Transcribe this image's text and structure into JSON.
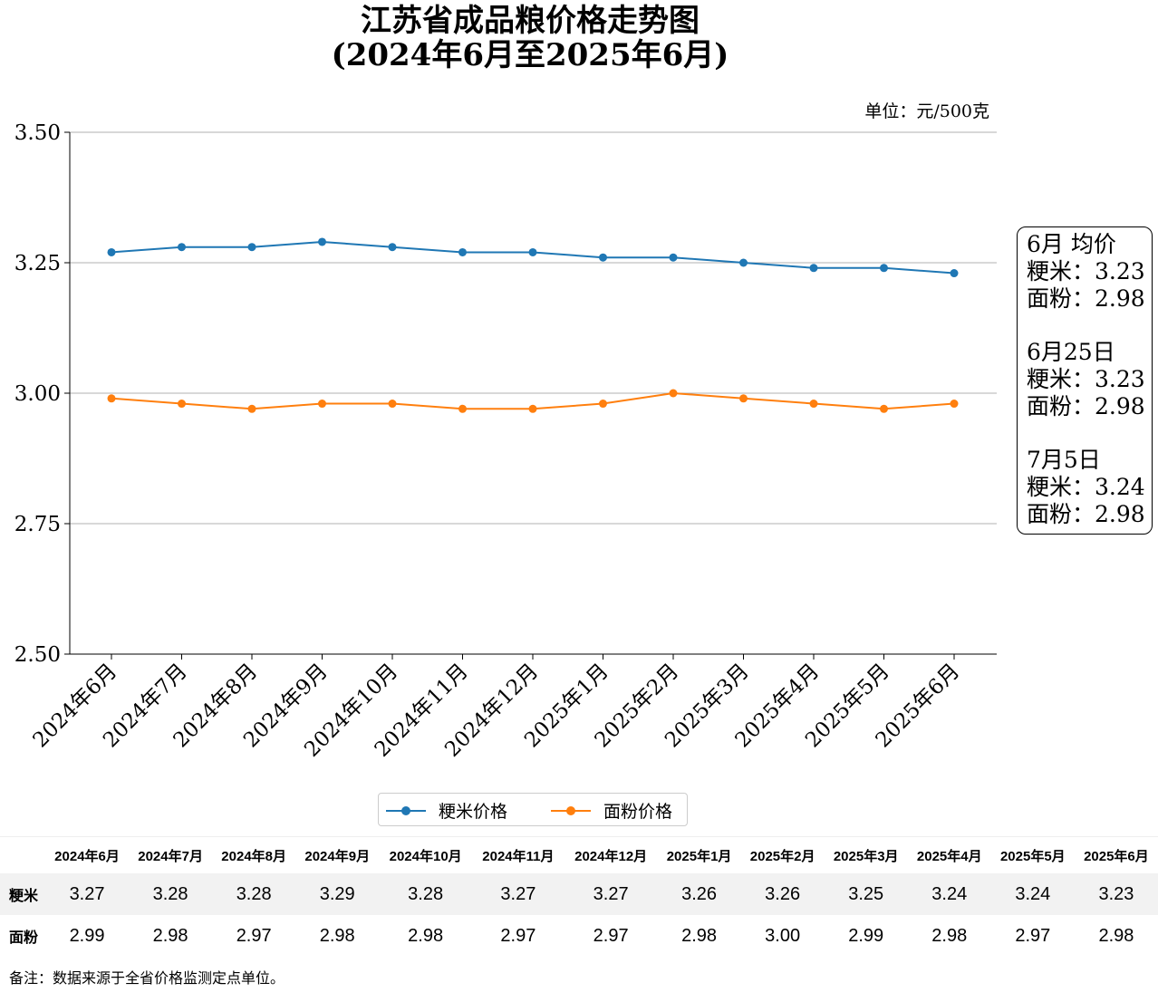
{
  "title_line1": "江苏省成品粮价格走势图",
  "title_line2": "(2024年6月至2025年6月)",
  "unit_label": "单位：元/500克",
  "avg_box": {
    "groups": [
      {
        "heading": "6月 均价",
        "rice": "粳米：3.23",
        "flour": "面粉：2.98"
      },
      {
        "heading": "6月25日",
        "rice": "粳米：3.23",
        "flour": "面粉：2.98"
      },
      {
        "heading": "7月5日",
        "rice": "粳米：3.24",
        "flour": "面粉：2.98"
      }
    ]
  },
  "legend": [
    {
      "label": "粳米价格",
      "color": "#1f77b4"
    },
    {
      "label": "面粉价格",
      "color": "#ff7f0e"
    }
  ],
  "chart_data": {
    "type": "line",
    "categories": [
      "2024年6月",
      "2024年7月",
      "2024年8月",
      "2024年9月",
      "2024年10月",
      "2024年11月",
      "2024年12月",
      "2025年1月",
      "2025年2月",
      "2025年3月",
      "2025年4月",
      "2025年5月",
      "2025年6月"
    ],
    "series": [
      {
        "name": "粳米价格",
        "color": "#1f77b4",
        "values": [
          3.27,
          3.28,
          3.28,
          3.29,
          3.28,
          3.27,
          3.27,
          3.26,
          3.26,
          3.25,
          3.24,
          3.24,
          3.23
        ]
      },
      {
        "name": "面粉价格",
        "color": "#ff7f0e",
        "values": [
          2.99,
          2.98,
          2.97,
          2.98,
          2.98,
          2.97,
          2.97,
          2.98,
          3.0,
          2.99,
          2.98,
          2.97,
          2.98
        ]
      }
    ],
    "ylim": [
      2.5,
      3.5
    ],
    "yticks": [
      "2.50",
      "2.75",
      "3.00",
      "3.25",
      "3.50"
    ],
    "grid": "horizontal",
    "legend_position": "bottom"
  },
  "table": {
    "columns": [
      "2024年6月",
      "2024年7月",
      "2024年8月",
      "2024年9月",
      "2024年10月",
      "2024年11月",
      "2024年12月",
      "2025年1月",
      "2025年2月",
      "2025年3月",
      "2025年4月",
      "2025年5月",
      "2025年6月"
    ],
    "rows": [
      {
        "label": "粳米",
        "values": [
          "3.27",
          "3.28",
          "3.28",
          "3.29",
          "3.28",
          "3.27",
          "3.27",
          "3.26",
          "3.26",
          "3.25",
          "3.24",
          "3.24",
          "3.23"
        ]
      },
      {
        "label": "面粉",
        "values": [
          "2.99",
          "2.98",
          "2.97",
          "2.98",
          "2.98",
          "2.97",
          "2.97",
          "2.98",
          "3.00",
          "2.99",
          "2.98",
          "2.97",
          "2.98"
        ]
      }
    ]
  },
  "note": "备注：数据来源于全省价格监测定点单位。"
}
